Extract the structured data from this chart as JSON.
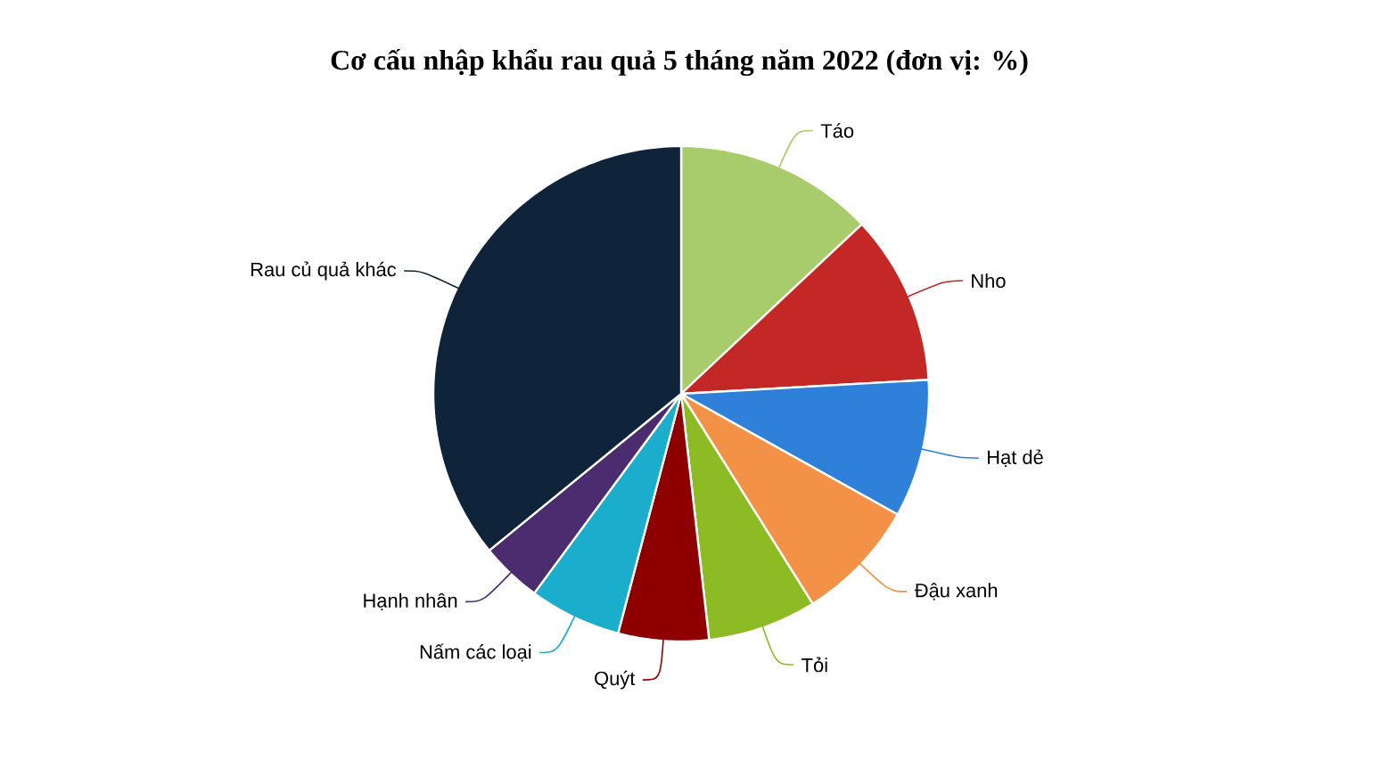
{
  "chart_data": {
    "type": "pie",
    "title": "Cơ cấu nhập khẩu rau quả 5 tháng năm 2022 (đơn vị: %)",
    "categories": [
      "Táo",
      "Nho",
      "Hạt dẻ",
      "Đậu xanh",
      "Tỏi",
      "Quýt",
      "Nấm các loại",
      "Hạnh nhân",
      "Rau củ quả khác"
    ],
    "values": [
      13.0,
      11.1,
      9.0,
      8.0,
      7.1,
      5.9,
      6.0,
      4.0,
      35.9
    ],
    "colors": [
      "#a8cb6b",
      "#c32726",
      "#2f80d8",
      "#f39246",
      "#8dbb24",
      "#8e0000",
      "#1badcc",
      "#4b2d6f",
      "#0f233a"
    ]
  }
}
